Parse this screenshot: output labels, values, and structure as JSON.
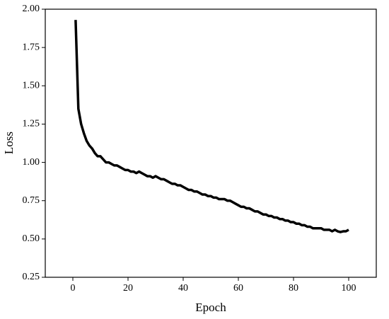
{
  "chart_data": {
    "type": "line",
    "x_label": "Epoch",
    "y_label": "Loss",
    "x": [
      1,
      2,
      3,
      4,
      5,
      6,
      7,
      8,
      9,
      10,
      11,
      12,
      13,
      14,
      15,
      16,
      17,
      18,
      19,
      20,
      21,
      22,
      23,
      24,
      25,
      26,
      27,
      28,
      29,
      30,
      31,
      32,
      33,
      34,
      35,
      36,
      37,
      38,
      39,
      40,
      41,
      42,
      43,
      44,
      45,
      46,
      47,
      48,
      49,
      50,
      51,
      52,
      53,
      54,
      55,
      56,
      57,
      58,
      59,
      60,
      61,
      62,
      63,
      64,
      65,
      66,
      67,
      68,
      69,
      70,
      71,
      72,
      73,
      74,
      75,
      76,
      77,
      78,
      79,
      80,
      81,
      82,
      83,
      84,
      85,
      86,
      87,
      88,
      89,
      90,
      91,
      92,
      93,
      94,
      95,
      96,
      97,
      98,
      99,
      100
    ],
    "series": [
      {
        "name": "Loss",
        "color": "#000000",
        "values": [
          1.93,
          1.35,
          1.25,
          1.19,
          1.14,
          1.11,
          1.09,
          1.06,
          1.04,
          1.04,
          1.02,
          1.0,
          1.0,
          0.99,
          0.98,
          0.98,
          0.97,
          0.96,
          0.95,
          0.95,
          0.94,
          0.94,
          0.93,
          0.94,
          0.93,
          0.92,
          0.91,
          0.91,
          0.9,
          0.91,
          0.9,
          0.89,
          0.89,
          0.88,
          0.87,
          0.86,
          0.86,
          0.85,
          0.85,
          0.84,
          0.83,
          0.82,
          0.82,
          0.81,
          0.81,
          0.8,
          0.79,
          0.79,
          0.78,
          0.78,
          0.77,
          0.77,
          0.76,
          0.76,
          0.76,
          0.75,
          0.75,
          0.74,
          0.73,
          0.72,
          0.71,
          0.71,
          0.7,
          0.7,
          0.69,
          0.68,
          0.68,
          0.67,
          0.66,
          0.66,
          0.65,
          0.65,
          0.64,
          0.64,
          0.63,
          0.63,
          0.62,
          0.62,
          0.61,
          0.61,
          0.6,
          0.6,
          0.59,
          0.59,
          0.58,
          0.58,
          0.57,
          0.57,
          0.57,
          0.57,
          0.56,
          0.56,
          0.56,
          0.55,
          0.56,
          0.55,
          0.545,
          0.55,
          0.55,
          0.56
        ]
      }
    ],
    "xlim": [
      -10,
      110
    ],
    "xticks": [
      0,
      20,
      40,
      60,
      80,
      100
    ],
    "ylim": [
      0.25,
      2.0
    ],
    "yticks": [
      {
        "value": 0.25,
        "label": "0.25"
      },
      {
        "value": 0.5,
        "label": "0.50"
      },
      {
        "value": 0.75,
        "label": "0.75"
      },
      {
        "value": 1.0,
        "label": "1.00"
      },
      {
        "value": 1.25,
        "label": "1.25"
      },
      {
        "value": 1.5,
        "label": "1.50"
      },
      {
        "value": 1.75,
        "label": "1.75"
      },
      {
        "value": 2.0,
        "label": "2.00"
      }
    ],
    "grid": false
  }
}
